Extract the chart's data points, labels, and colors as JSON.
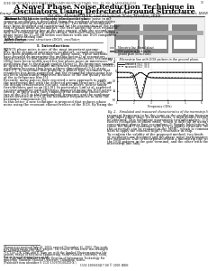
{
  "header_text": "IEEE MICROWAVE AND WIRELESS COMPONENTS LETTERS, VOL. 13, NO. 1, JANUARY 2003",
  "header_page": "19",
  "title_line1": "A Novel Phase Noise Reduction Technique in",
  "title_line2": "Oscillators Using Defected Ground Structure",
  "authors1": "Young-Taek Lee, Student Member, IEEE, Jong-Klu Lim, Member, IEEE, Jun-Seok Park, Associate Member, IEEE,",
  "authors2": "Dal Ahn, Member, IEEE, and Sangwook Nam, Member, IEEE",
  "doi_text": "1531-1309/03$17.00 © 2003 IEEE",
  "bg_color": "#ffffff"
}
